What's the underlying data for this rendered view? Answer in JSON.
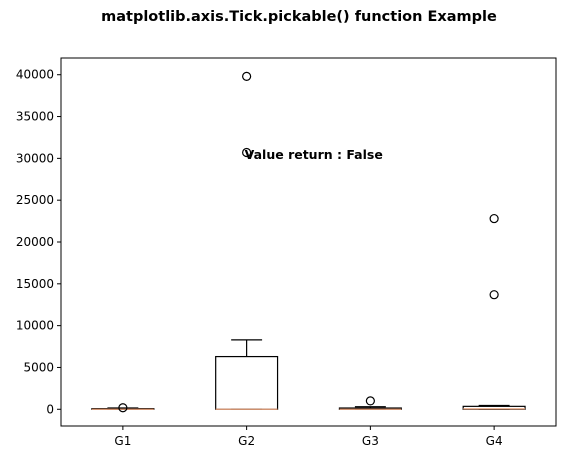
{
  "chart_data": {
    "type": "boxplot",
    "title": "matplotlib.axis.Tick.pickable() function Example",
    "xlabel": "",
    "ylabel": "",
    "ylim": [
      -2000,
      42000
    ],
    "yticks": [
      0,
      5000,
      10000,
      15000,
      20000,
      25000,
      30000,
      35000,
      40000
    ],
    "categories": [
      "G1",
      "G2",
      "G3",
      "G4"
    ],
    "boxes": [
      {
        "label": "G1",
        "whisker_low": 0,
        "q1": 0,
        "median": 0,
        "q3": 80,
        "whisker_high": 150,
        "outliers": [
          180
        ]
      },
      {
        "label": "G2",
        "whisker_low": 0,
        "q1": 0,
        "median": 0,
        "q3": 6300,
        "whisker_high": 8300,
        "outliers": [
          30700,
          39800
        ]
      },
      {
        "label": "G3",
        "whisker_low": 0,
        "q1": 0,
        "median": 0,
        "q3": 150,
        "whisker_high": 300,
        "outliers": [
          1000
        ]
      },
      {
        "label": "G4",
        "whisker_low": 0,
        "q1": 0,
        "median": 50,
        "q3": 350,
        "whisker_high": 450,
        "outliers": [
          13700,
          22800
        ]
      }
    ],
    "annotations": [
      {
        "text": "Value return : False",
        "x": 2,
        "y": 30400
      }
    ],
    "grid": false,
    "colors": {
      "box": "#000000",
      "median": "#e8a07a",
      "background": "#ffffff"
    }
  }
}
